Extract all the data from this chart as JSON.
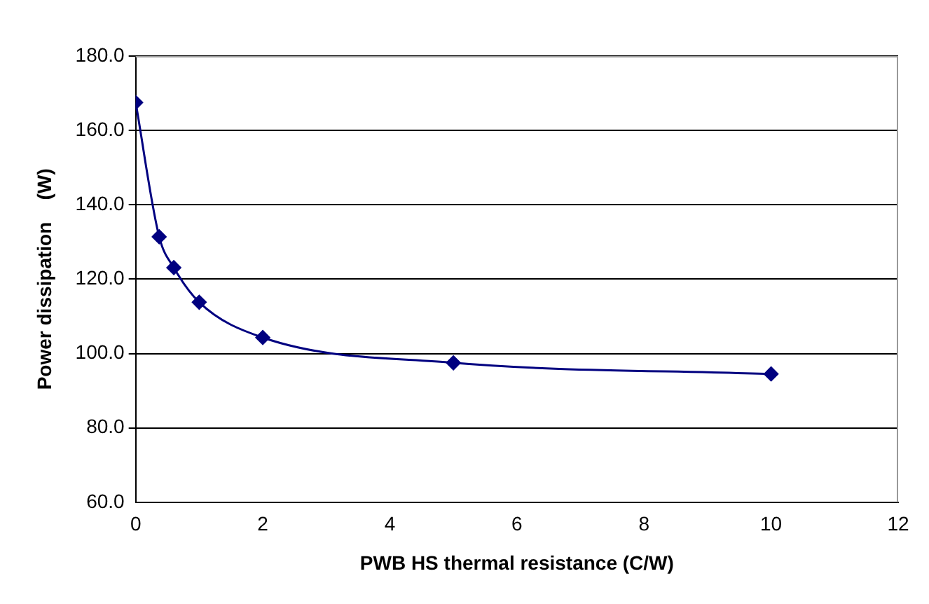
{
  "chart_data": {
    "type": "line",
    "xlabel": "PWB HS thermal resistance (C/W)",
    "ylabel": "Power dissipation    (W)",
    "x": [
      0,
      0.37,
      0.6,
      1,
      2,
      5,
      10
    ],
    "series": [
      {
        "color": "#000080",
        "values": [
          167.5,
          131.4,
          123.1,
          113.8,
          104.3,
          97.5,
          94.5
        ]
      }
    ],
    "xlim": [
      0,
      12
    ],
    "xticks": [
      0,
      2,
      4,
      6,
      8,
      10,
      12
    ],
    "ylim": [
      60,
      180
    ],
    "yticks": [
      {
        "value": 60,
        "label": "60.0"
      },
      {
        "value": 80,
        "label": "80.0"
      },
      {
        "value": 100,
        "label": "100.0"
      },
      {
        "value": 120,
        "label": "120.0"
      },
      {
        "value": 140,
        "label": "140.0"
      },
      {
        "value": 160,
        "label": "160.0"
      },
      {
        "value": 180,
        "label": "180.0"
      }
    ],
    "grid": "y",
    "marker": "diamond",
    "line_style": "solid",
    "legend": false
  }
}
